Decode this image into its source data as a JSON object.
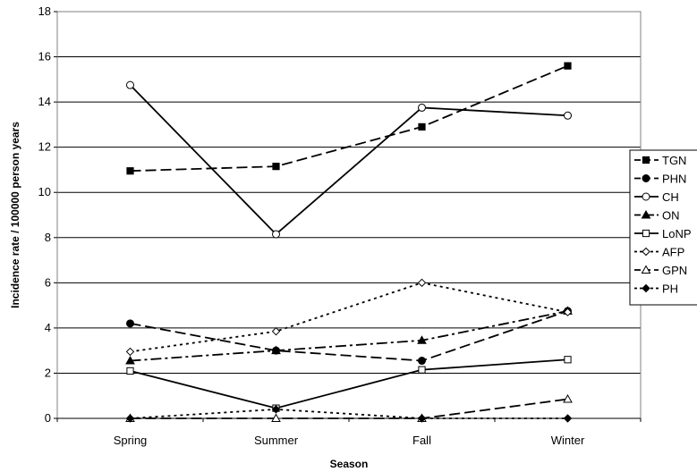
{
  "chart_data": {
    "type": "line",
    "title": "",
    "xlabel": "Season",
    "ylabel": "Incidence rate / 100000 person years",
    "categories": [
      "Spring",
      "Summer",
      "Fall",
      "Winter"
    ],
    "ylim": [
      0,
      18
    ],
    "yticks": [
      "0",
      "2",
      "4",
      "6",
      "8",
      "10",
      "12",
      "14",
      "16",
      "18"
    ],
    "grid": "horizontal major gridlines",
    "legend_position": "right",
    "series": [
      {
        "name": "TGN",
        "values": [
          10.95,
          11.15,
          12.9,
          15.6
        ],
        "marker": "filled-square",
        "dash": "long-dash"
      },
      {
        "name": "PHN",
        "values": [
          4.2,
          3.0,
          2.55,
          4.75
        ],
        "marker": "filled-circle",
        "dash": "long-dash"
      },
      {
        "name": "CH",
        "values": [
          14.75,
          8.15,
          13.75,
          13.4
        ],
        "marker": "open-circle",
        "dash": "solid"
      },
      {
        "name": "ON",
        "values": [
          2.55,
          3.0,
          3.45,
          4.75
        ],
        "marker": "filled-triangle",
        "dash": "dash-dot"
      },
      {
        "name": "LoNP",
        "values": [
          2.1,
          0.45,
          2.15,
          2.6
        ],
        "marker": "open-square",
        "dash": "solid"
      },
      {
        "name": "AFP",
        "values": [
          2.95,
          3.85,
          6.0,
          4.7
        ],
        "marker": "open-diamond",
        "dash": "dotted"
      },
      {
        "name": "GPN",
        "values": [
          0.0,
          0.0,
          0.0,
          0.85
        ],
        "marker": "open-triangle",
        "dash": "long-dash"
      },
      {
        "name": "PH",
        "values": [
          0.0,
          0.4,
          0.0,
          0.0
        ],
        "marker": "filled-diamond",
        "dash": "dotted"
      }
    ]
  }
}
